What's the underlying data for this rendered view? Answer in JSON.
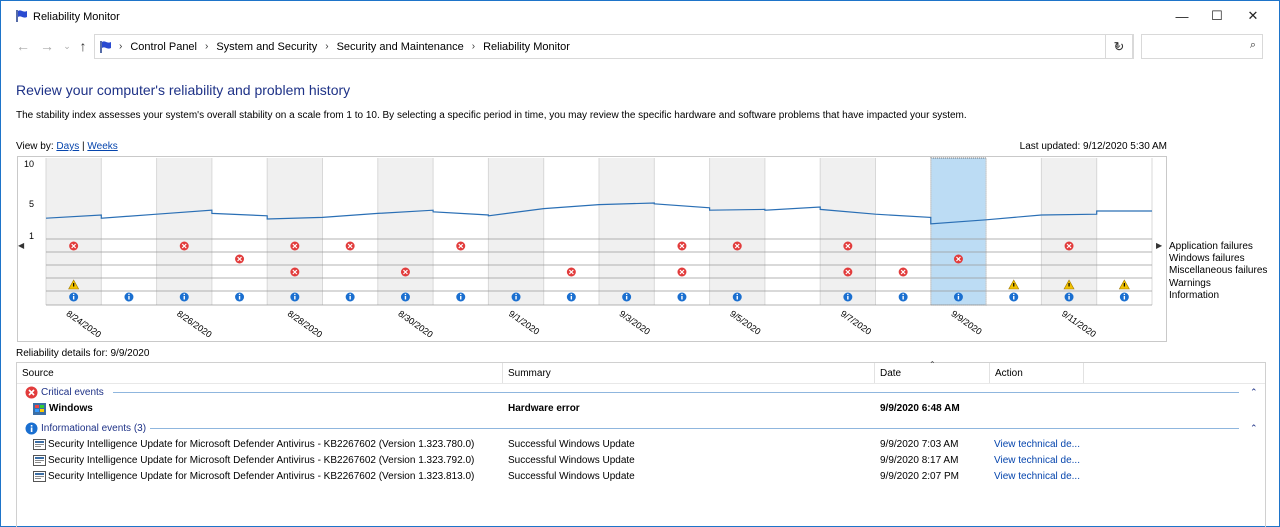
{
  "window": {
    "title": "Reliability Monitor",
    "minimize": "—",
    "maximize": "☐",
    "close": "✕"
  },
  "address": {
    "crumbs": [
      "Control Panel",
      "System and Security",
      "Security and Maintenance",
      "Reliability Monitor"
    ],
    "search_placeholder": ""
  },
  "page": {
    "heading": "Review your computer's reliability and problem history",
    "description": "The stability index assesses your system's overall stability on a scale from 1 to 10. By selecting a specific period in time, you may review the specific hardware and software problems that have impacted your system.",
    "view_by_label": "View by:",
    "view_days": "Days",
    "view_sep": "|",
    "view_weeks": "Weeks",
    "last_updated": "Last updated: 9/12/2020 5:30 AM"
  },
  "chart_data": {
    "type": "line",
    "y_ticks": [
      "10",
      "5",
      "1"
    ],
    "ylim": [
      1,
      10
    ],
    "selected_index": 16,
    "dates": [
      "8/24/2020",
      "8/25/2020",
      "8/26/2020",
      "8/27/2020",
      "8/28/2020",
      "8/29/2020",
      "8/30/2020",
      "8/31/2020",
      "9/1/2020",
      "9/2/2020",
      "9/3/2020",
      "9/4/2020",
      "9/5/2020",
      "9/6/2020",
      "9/7/2020",
      "9/8/2020",
      "9/9/2020",
      "9/10/2020",
      "9/11/2020",
      "9/12/2020"
    ],
    "date_labels": [
      "8/24/2020",
      "",
      "8/26/2020",
      "",
      "8/28/2020",
      "",
      "8/30/2020",
      "",
      "9/1/2020",
      "",
      "9/3/2020",
      "",
      "9/5/2020",
      "",
      "9/7/2020",
      "",
      "9/9/2020",
      "",
      "9/11/2020",
      ""
    ],
    "stability_start": [
      3.1,
      3.1,
      3.6,
      3.7,
      3.0,
      3.2,
      3.7,
      3.9,
      3.4,
      4.3,
      4.8,
      4.9,
      4.1,
      4.1,
      4.2,
      3.6,
      2.4,
      2.9,
      3.5,
      4.0
    ],
    "stability_end": [
      3.5,
      3.6,
      4.1,
      3.4,
      3.2,
      3.7,
      4.1,
      3.5,
      4.3,
      4.8,
      5.0,
      4.4,
      4.2,
      4.5,
      3.6,
      3.2,
      2.9,
      3.5,
      3.6,
      4.0
    ],
    "rows": [
      "Application failures",
      "Windows failures",
      "Miscellaneous failures",
      "Warnings",
      "Information"
    ],
    "events": {
      "app_failures": [
        0,
        2,
        4,
        5,
        7,
        11,
        12,
        14,
        18
      ],
      "windows_failures": [
        3,
        16
      ],
      "misc_failures": [
        4,
        6,
        9,
        11,
        14,
        15
      ],
      "warnings": [
        0,
        17,
        18,
        19
      ],
      "information": [
        0,
        1,
        2,
        3,
        4,
        5,
        6,
        7,
        8,
        9,
        10,
        11,
        12,
        14,
        15,
        16,
        17,
        18,
        19
      ]
    }
  },
  "details": {
    "label": "Reliability details for: 9/9/2020",
    "columns": [
      "Source",
      "Summary",
      "Date",
      "Action"
    ],
    "critical_group": "Critical events",
    "critical_rows": [
      {
        "source": "Windows",
        "summary": "Hardware error",
        "date": "9/9/2020 6:48 AM",
        "action": ""
      }
    ],
    "info_group": "Informational events (3)",
    "info_rows": [
      {
        "source": "Security Intelligence Update for Microsoft Defender Antivirus - KB2267602 (Version 1.323.780.0)",
        "summary": "Successful Windows Update",
        "date": "9/9/2020 7:03 AM",
        "action": "View technical de..."
      },
      {
        "source": "Security Intelligence Update for Microsoft Defender Antivirus - KB2267602 (Version 1.323.792.0)",
        "summary": "Successful Windows Update",
        "date": "9/9/2020 8:17 AM",
        "action": "View technical de..."
      },
      {
        "source": "Security Intelligence Update for Microsoft Defender Antivirus - KB2267602 (Version 1.323.813.0)",
        "summary": "Successful Windows Update",
        "date": "9/9/2020 2:07 PM",
        "action": "View technical de..."
      }
    ]
  },
  "colors": {
    "accent": "#1e74c9",
    "selected": "#bcdcf4",
    "shade": "#f0f0f0",
    "error": "#e23c3c",
    "info": "#1a6fd0",
    "warning": "#f2c200"
  }
}
